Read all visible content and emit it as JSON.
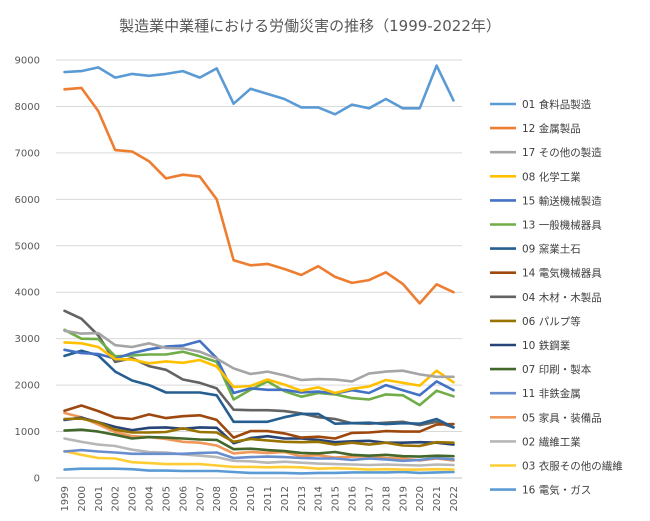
{
  "chart_data": {
    "type": "line",
    "title": "製造業中業種における労働災害の推移（1999-2022年）",
    "xlabel": "",
    "ylabel": "",
    "ylim": [
      0,
      9000
    ],
    "yticks": [
      0,
      1000,
      2000,
      3000,
      4000,
      5000,
      6000,
      7000,
      8000,
      9000
    ],
    "grid": "horizontal",
    "legend_position": "right",
    "categories": [
      "1999",
      "2000",
      "2001",
      "2002",
      "2003",
      "2004",
      "2005",
      "2006",
      "2007",
      "2008",
      "2009",
      "2010",
      "2011",
      "2012",
      "2013",
      "2014",
      "2015",
      "2016",
      "2017",
      "2018",
      "2019",
      "2020",
      "2021",
      "2022"
    ],
    "series": [
      {
        "name": "01 食料品製造",
        "color": "#5b9bd5",
        "values": [
          8740,
          8760,
          8840,
          8620,
          8700,
          8660,
          8700,
          8760,
          8620,
          8820,
          8060,
          8380,
          8270,
          8160,
          7980,
          7980,
          7830,
          8040,
          7960,
          8160,
          7960,
          7960,
          8880,
          8130
        ]
      },
      {
        "name": "12 金属製品",
        "color": "#ed7d31",
        "values": [
          8370,
          8400,
          7900,
          7060,
          7030,
          6820,
          6450,
          6530,
          6490,
          6000,
          4690,
          4580,
          4610,
          4500,
          4370,
          4560,
          4330,
          4200,
          4260,
          4430,
          4180,
          3760,
          4170,
          4000
        ]
      },
      {
        "name": "17 その他の製造",
        "color": "#a5a5a5",
        "values": [
          3170,
          3110,
          3120,
          2860,
          2820,
          2900,
          2800,
          2790,
          2720,
          2570,
          2360,
          2240,
          2290,
          2210,
          2110,
          2130,
          2120,
          2080,
          2250,
          2290,
          2310,
          2230,
          2180,
          2180
        ]
      },
      {
        "name": "08 化学工業",
        "color": "#ffc000",
        "values": [
          2920,
          2900,
          2820,
          2560,
          2550,
          2470,
          2510,
          2480,
          2540,
          2400,
          1960,
          1980,
          2120,
          2010,
          1880,
          1950,
          1830,
          1920,
          1970,
          2110,
          2050,
          1990,
          2310,
          2060
        ]
      },
      {
        "name": "15 輸送機械製造",
        "color": "#4472c4",
        "values": [
          2760,
          2690,
          2670,
          2570,
          2690,
          2770,
          2830,
          2850,
          2950,
          2580,
          1830,
          1930,
          1900,
          1900,
          1840,
          1860,
          1820,
          1890,
          1830,
          2000,
          1890,
          1780,
          2080,
          1890
        ]
      },
      {
        "name": "13 一般機械器具",
        "color": "#70ad47",
        "values": [
          3190,
          3000,
          2990,
          2620,
          2640,
          2660,
          2660,
          2720,
          2620,
          2500,
          1690,
          1900,
          2080,
          1870,
          1750,
          1830,
          1800,
          1720,
          1690,
          1800,
          1780,
          1570,
          1880,
          1760
        ]
      },
      {
        "name": "09 窯業土石",
        "color": "#255e91",
        "values": [
          2630,
          2740,
          2640,
          2290,
          2100,
          2000,
          1840,
          1840,
          1840,
          1780,
          1210,
          1210,
          1210,
          1310,
          1380,
          1380,
          1170,
          1180,
          1190,
          1160,
          1180,
          1170,
          1270,
          1090
        ]
      },
      {
        "name": "14 電気機械器具",
        "color": "#9e480e",
        "values": [
          1450,
          1560,
          1440,
          1300,
          1270,
          1370,
          1290,
          1330,
          1350,
          1250,
          870,
          1010,
          1010,
          960,
          870,
          890,
          850,
          970,
          980,
          1010,
          1000,
          1000,
          1150,
          1160
        ]
      },
      {
        "name": "04 木材・木製品",
        "color": "#636363",
        "values": [
          3600,
          3430,
          3070,
          2500,
          2580,
          2410,
          2330,
          2120,
          2050,
          1930,
          1470,
          1460,
          1460,
          1440,
          1390,
          1310,
          1270,
          1180,
          1170,
          1190,
          1210,
          1140,
          1210,
          1090
        ]
      },
      {
        "name": "06 パルプ等",
        "color": "#997300",
        "values": [
          1270,
          1280,
          1200,
          1040,
          980,
          980,
          990,
          1070,
          990,
          980,
          780,
          840,
          810,
          780,
          770,
          780,
          720,
          760,
          720,
          760,
          700,
          690,
          770,
          760
        ]
      },
      {
        "name": "10 鉄鋼業",
        "color": "#264478",
        "values": [
          1250,
          1300,
          1200,
          1100,
          1030,
          1080,
          1090,
          1060,
          1090,
          1080,
          750,
          860,
          900,
          850,
          850,
          820,
          770,
          790,
          800,
          760,
          760,
          770,
          760,
          720
        ]
      },
      {
        "name": "07 印刷・製本",
        "color": "#43682b",
        "values": [
          1020,
          1040,
          1000,
          930,
          850,
          880,
          870,
          850,
          830,
          820,
          620,
          630,
          600,
          580,
          540,
          530,
          560,
          500,
          480,
          500,
          470,
          460,
          480,
          470
        ]
      },
      {
        "name": "11 非鉄金属",
        "color": "#698ed0",
        "values": [
          570,
          600,
          570,
          550,
          520,
          520,
          520,
          520,
          540,
          550,
          430,
          450,
          460,
          450,
          430,
          420,
          420,
          390,
          420,
          400,
          370,
          390,
          430,
          400
        ]
      },
      {
        "name": "05 家具・装備品",
        "color": "#f1975a",
        "values": [
          1400,
          1310,
          1150,
          990,
          900,
          880,
          840,
          780,
          760,
          700,
          530,
          560,
          540,
          560,
          470,
          490,
          440,
          460,
          470,
          430,
          420,
          380,
          420,
          380
        ]
      },
      {
        "name": "02 繊維工業",
        "color": "#b7b7b7",
        "values": [
          850,
          780,
          720,
          690,
          610,
          560,
          550,
          510,
          480,
          450,
          370,
          360,
          330,
          350,
          330,
          310,
          300,
          290,
          280,
          290,
          280,
          270,
          290,
          280
        ]
      },
      {
        "name": "03 衣服その他の繊維",
        "color": "#ffcd33",
        "values": [
          580,
          500,
          430,
          420,
          340,
          320,
          300,
          300,
          300,
          270,
          240,
          240,
          230,
          240,
          230,
          200,
          210,
          200,
          180,
          190,
          180,
          180,
          190,
          180
        ]
      },
      {
        "name": "16 電気・ガス",
        "color": "#5b9bd5",
        "values": [
          180,
          200,
          200,
          200,
          190,
          160,
          160,
          150,
          150,
          150,
          130,
          110,
          110,
          110,
          100,
          110,
          110,
          120,
          120,
          120,
          130,
          110,
          120,
          130
        ]
      }
    ]
  }
}
